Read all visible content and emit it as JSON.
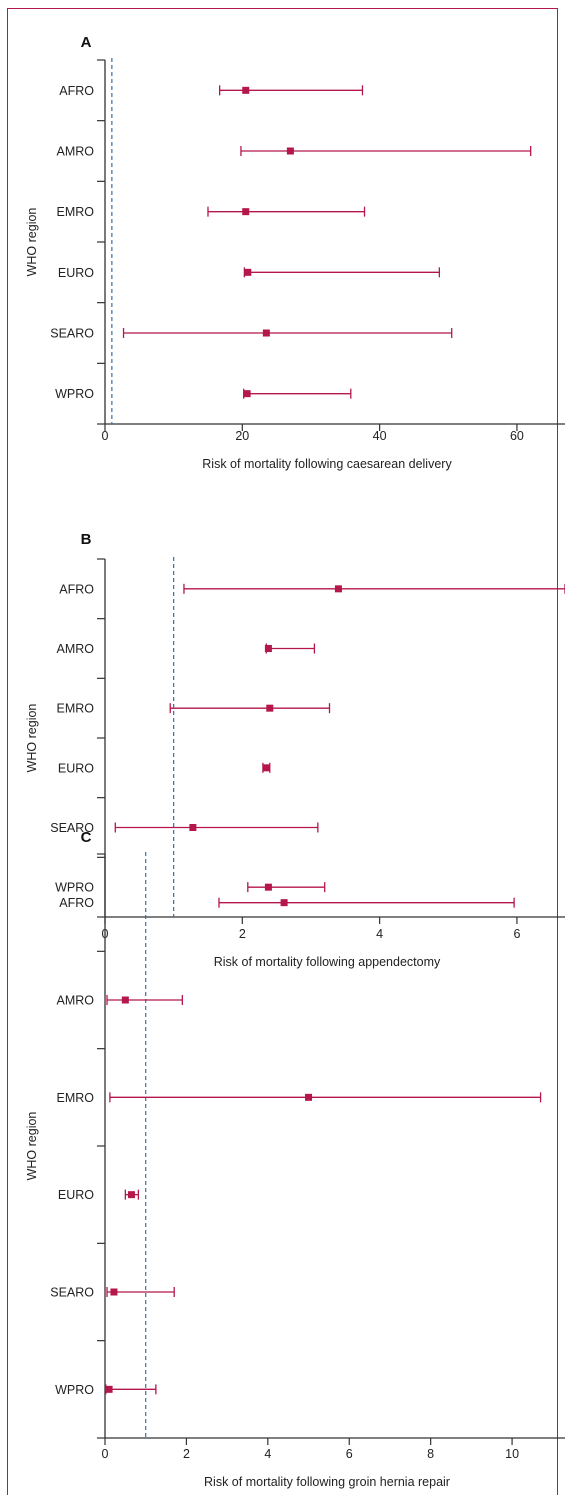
{
  "colors": {
    "frame": "#b5174a",
    "marker": "#b5174a",
    "reference_line": "#3a6f9f",
    "axis": "#333333"
  },
  "chart_data": [
    {
      "type": "forest",
      "panel_label": "A",
      "ylabel": "WHO region",
      "xlabel": "Risk of mortality following caesarean delivery",
      "categories": [
        "AFRO",
        "AMRO",
        "EMRO",
        "EURO",
        "SEARO",
        "WPRO"
      ],
      "estimates": [
        20.5,
        27.0,
        20.5,
        20.8,
        23.5,
        20.7
      ],
      "lower": [
        16.7,
        19.8,
        15.0,
        20.3,
        2.7,
        20.2
      ],
      "upper": [
        37.5,
        62.0,
        37.8,
        48.7,
        50.5,
        35.8
      ],
      "xlim": [
        0,
        67
      ],
      "xticks": [
        0,
        20,
        40,
        60
      ],
      "reference_line": 1
    },
    {
      "type": "forest",
      "panel_label": "B",
      "ylabel": "WHO region",
      "xlabel": "Risk of mortality following appendectomy",
      "categories": [
        "AFRO",
        "AMRO",
        "EMRO",
        "EURO",
        "SEARO",
        "WPRO"
      ],
      "estimates": [
        3.4,
        2.38,
        2.4,
        2.35,
        1.28,
        2.38
      ],
      "lower": [
        1.15,
        2.35,
        0.95,
        2.3,
        0.15,
        2.08
      ],
      "upper": [
        6.7,
        3.05,
        3.27,
        2.4,
        3.1,
        3.2
      ],
      "xlim": [
        0,
        6.7
      ],
      "xticks": [
        0,
        2,
        4,
        6
      ],
      "reference_line": 1
    },
    {
      "type": "forest",
      "panel_label": "C",
      "ylabel": "WHO region",
      "xlabel": "Risk of mortality following groin hernia repair",
      "categories": [
        "AFRO",
        "AMRO",
        "EMRO",
        "EURO",
        "SEARO",
        "WPRO"
      ],
      "estimates": [
        4.4,
        0.5,
        5.0,
        0.65,
        0.22,
        0.1
      ],
      "lower": [
        2.8,
        0.05,
        0.12,
        0.5,
        0.05,
        0.02
      ],
      "upper": [
        10.05,
        1.9,
        10.7,
        0.82,
        1.7,
        1.25
      ],
      "xlim": [
        0,
        11.3
      ],
      "xticks": [
        0,
        2,
        4,
        6,
        8,
        10
      ],
      "reference_line": 1
    }
  ]
}
